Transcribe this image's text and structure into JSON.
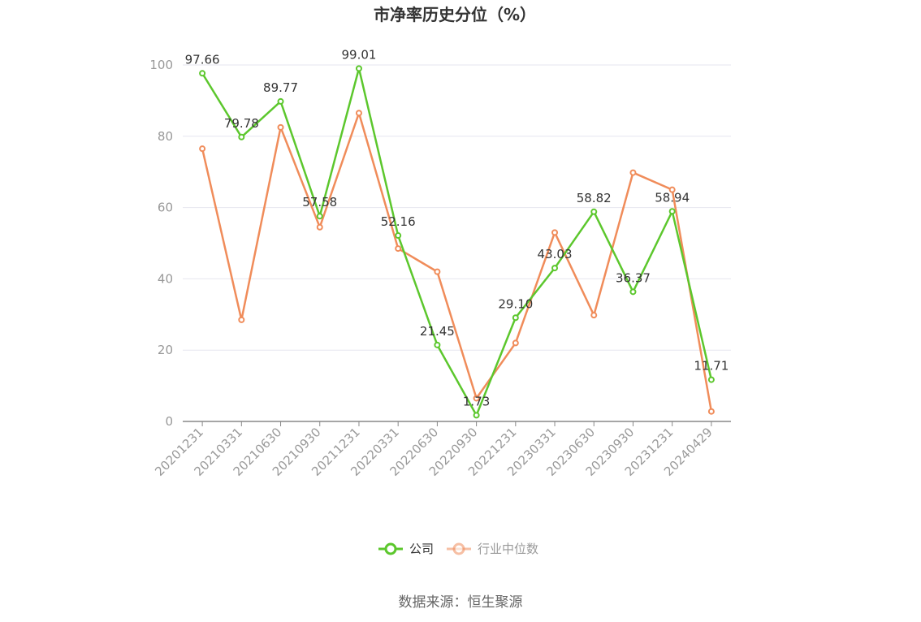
{
  "chart_data": {
    "type": "line",
    "title": "市净率历史分位（%）",
    "categories": [
      "20201231",
      "20210331",
      "20210630",
      "20210930",
      "20211231",
      "20220331",
      "20220630",
      "20220930",
      "20221231",
      "20230331",
      "20230630",
      "20230930",
      "20231231",
      "20240429"
    ],
    "ylim": [
      0,
      100
    ],
    "yticks": [
      0,
      20,
      40,
      60,
      80,
      100
    ],
    "grid": true,
    "legend_position": "bottom",
    "series": [
      {
        "name": "公司",
        "color": "#5cc72d",
        "values": [
          97.66,
          79.78,
          89.77,
          57.58,
          99.01,
          52.16,
          21.45,
          1.73,
          29.1,
          43.03,
          58.82,
          36.37,
          58.94,
          11.71
        ],
        "labels": [
          "97.66",
          "79.78",
          "89.77",
          "57.58",
          "99.01",
          "52.16",
          "21.45",
          "1.73",
          "29.10",
          "43.03",
          "58.82",
          "36.37",
          "58.94",
          "11.71"
        ]
      },
      {
        "name": "行业中位数",
        "color": "#f08c5a",
        "values": [
          76.5,
          28.5,
          82.5,
          54.5,
          86.5,
          48.5,
          42.0,
          6.5,
          22.0,
          53.0,
          29.8,
          69.8,
          65.0,
          2.8
        ]
      }
    ]
  },
  "source": "数据来源：恒生聚源"
}
